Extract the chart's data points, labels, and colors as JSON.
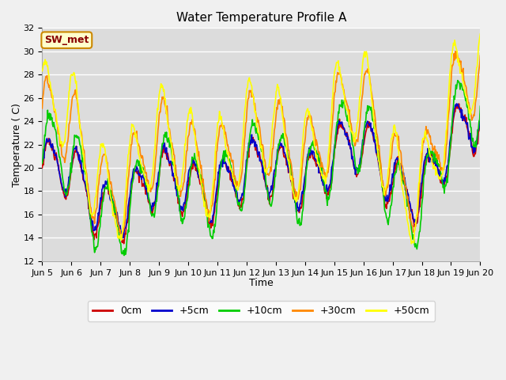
{
  "title": "Water Temperature Profile A",
  "xlabel": "Time",
  "ylabel": "Temperature ( C)",
  "xlim": [
    0,
    15
  ],
  "ylim": [
    12,
    32
  ],
  "yticks": [
    12,
    14,
    16,
    18,
    20,
    22,
    24,
    26,
    28,
    30,
    32
  ],
  "xtick_labels": [
    "Jun 5",
    "Jun 6",
    "Jun 7",
    "Jun 8",
    "Jun 9",
    "Jun 10",
    "Jun 11",
    "Jun 12",
    "Jun 13",
    "Jun 14",
    "Jun 15",
    "Jun 16",
    "Jun 17",
    "Jun 18",
    "Jun 19",
    "Jun 20"
  ],
  "legend_entries": [
    "0cm",
    "+5cm",
    "+10cm",
    "+30cm",
    "+50cm"
  ],
  "legend_colors": [
    "#cc0000",
    "#0000cc",
    "#00cc00",
    "#ff8800",
    "#ffff00"
  ],
  "plot_bg": "#dcdcdc",
  "fig_bg": "#f0f0f0",
  "grid_color": "#ffffff",
  "annotation_text": "SW_met",
  "annotation_bg": "#ffffcc",
  "annotation_border": "#cc8800",
  "annotation_text_color": "#880000",
  "linewidth": 1.2,
  "title_fontsize": 11,
  "axis_fontsize": 9,
  "tick_fontsize": 8,
  "legend_fontsize": 9
}
